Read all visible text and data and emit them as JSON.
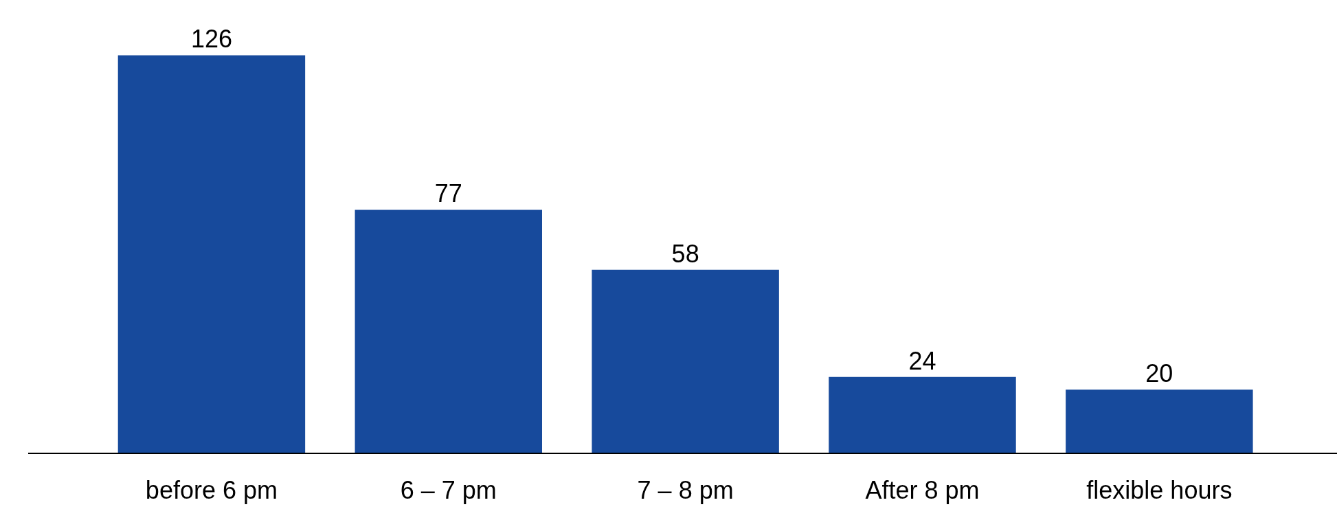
{
  "chart_data": {
    "type": "bar",
    "categories": [
      "before 6 pm",
      "6 – 7 pm",
      "7 – 8 pm",
      "After 8 pm",
      "flexible hours"
    ],
    "values": [
      126,
      77,
      58,
      24,
      20
    ],
    "color": "#174a9c",
    "data_labels": true,
    "tick_labels": "x"
  }
}
